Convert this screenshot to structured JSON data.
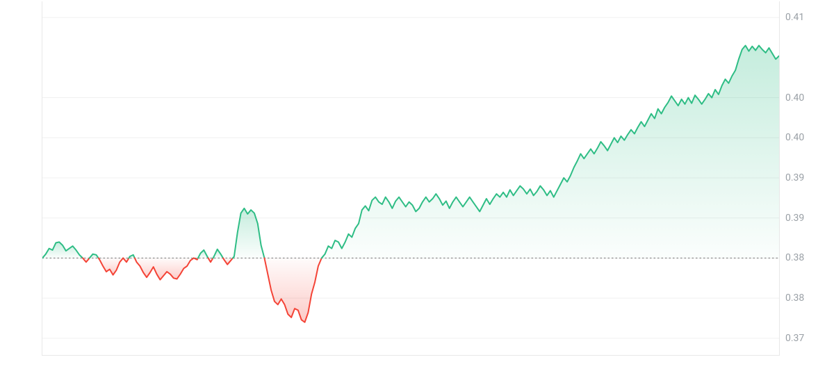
{
  "price_chart": {
    "type": "line-area",
    "baseline": 0.38,
    "ylim": [
      0.368,
      0.412
    ],
    "ytick_values": [
      0.41,
      0.4,
      0.395,
      0.39,
      0.385,
      0.38,
      0.375,
      0.37
    ],
    "ytick_labels": [
      "0.41",
      "0.40",
      "0.40",
      "0.39",
      "0.39",
      "0.38",
      "0.38",
      "0.37"
    ],
    "axis_label_color": "#9aa0a6",
    "axis_label_fontsize": 14,
    "grid_color": "#f0f0f0",
    "baseline_color": "#808080",
    "baseline_dotted": true,
    "border_color": "#e8e8e8",
    "background_color": "#ffffff",
    "colors": {
      "up_line": "#2ebd85",
      "down_line": "#f44336",
      "up_fill_top": "rgba(46,189,133,0.28)",
      "up_fill_bottom": "rgba(46,189,133,0.02)",
      "down_fill_top": "rgba(244,67,54,0.02)",
      "down_fill_bottom": "rgba(244,67,54,0.28)"
    },
    "line_width": 2,
    "series": [
      0.38,
      0.3805,
      0.3812,
      0.381,
      0.3819,
      0.382,
      0.3816,
      0.3809,
      0.3812,
      0.3815,
      0.381,
      0.3804,
      0.38,
      0.3795,
      0.38,
      0.3805,
      0.3804,
      0.3798,
      0.379,
      0.3783,
      0.3786,
      0.3779,
      0.3785,
      0.3795,
      0.38,
      0.3795,
      0.3802,
      0.3804,
      0.3795,
      0.379,
      0.3782,
      0.3776,
      0.3782,
      0.3789,
      0.378,
      0.3773,
      0.3778,
      0.3783,
      0.378,
      0.3775,
      0.3774,
      0.378,
      0.3787,
      0.379,
      0.3797,
      0.38,
      0.3798,
      0.3806,
      0.381,
      0.3802,
      0.3795,
      0.3802,
      0.3811,
      0.3805,
      0.3798,
      0.3792,
      0.3797,
      0.3802,
      0.3832,
      0.3856,
      0.3862,
      0.3855,
      0.386,
      0.3856,
      0.3843,
      0.3816,
      0.38,
      0.378,
      0.376,
      0.3746,
      0.3742,
      0.3749,
      0.3742,
      0.373,
      0.3726,
      0.3737,
      0.3735,
      0.3723,
      0.372,
      0.3732,
      0.3755,
      0.377,
      0.379,
      0.38,
      0.3805,
      0.3815,
      0.3812,
      0.3822,
      0.382,
      0.3812,
      0.382,
      0.383,
      0.3826,
      0.3837,
      0.3843,
      0.386,
      0.3865,
      0.3859,
      0.3872,
      0.3876,
      0.387,
      0.3867,
      0.3876,
      0.387,
      0.3862,
      0.3871,
      0.3876,
      0.387,
      0.3864,
      0.387,
      0.3866,
      0.3858,
      0.3862,
      0.387,
      0.3876,
      0.387,
      0.3874,
      0.388,
      0.3874,
      0.3866,
      0.3871,
      0.3862,
      0.387,
      0.3876,
      0.387,
      0.3864,
      0.387,
      0.3876,
      0.387,
      0.3864,
      0.3858,
      0.3866,
      0.3874,
      0.3867,
      0.3874,
      0.388,
      0.3876,
      0.3882,
      0.3876,
      0.3885,
      0.3878,
      0.3884,
      0.389,
      0.3886,
      0.388,
      0.3886,
      0.3878,
      0.3883,
      0.389,
      0.3885,
      0.3878,
      0.3884,
      0.3876,
      0.3884,
      0.3892,
      0.39,
      0.3895,
      0.3903,
      0.3913,
      0.3921,
      0.393,
      0.3924,
      0.393,
      0.3936,
      0.393,
      0.3937,
      0.3945,
      0.394,
      0.3934,
      0.3942,
      0.395,
      0.3944,
      0.3952,
      0.3947,
      0.3954,
      0.396,
      0.3955,
      0.3963,
      0.397,
      0.3964,
      0.3972,
      0.398,
      0.3974,
      0.3986,
      0.398,
      0.3988,
      0.3994,
      0.4002,
      0.3996,
      0.399,
      0.3998,
      0.3992,
      0.4,
      0.3993,
      0.4003,
      0.3998,
      0.3992,
      0.3998,
      0.4005,
      0.4,
      0.401,
      0.4004,
      0.4015,
      0.4023,
      0.4018,
      0.4027,
      0.4034,
      0.4048,
      0.406,
      0.4065,
      0.4058,
      0.4064,
      0.4059,
      0.4065,
      0.406,
      0.4056,
      0.4062,
      0.4055,
      0.4048,
      0.4052
    ]
  }
}
